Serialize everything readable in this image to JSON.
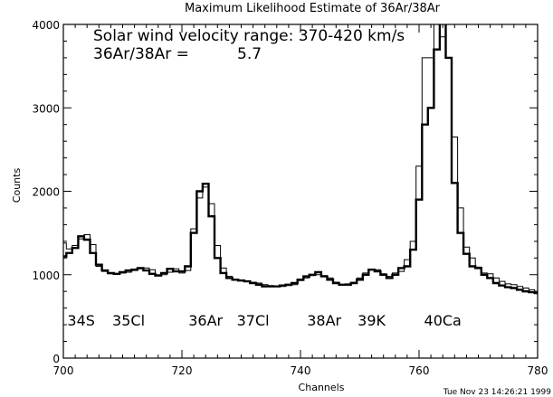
{
  "chart_data": {
    "type": "line",
    "title": "Maximum Likelihood Estimate of 36Ar/38Ar",
    "xlabel": "Channels",
    "ylabel": "Counts",
    "xlim": [
      700,
      780
    ],
    "ylim": [
      0,
      4000
    ],
    "x_ticks": [
      700,
      720,
      740,
      760,
      780
    ],
    "y_ticks": [
      0,
      1000,
      2000,
      3000,
      4000
    ],
    "grid": false,
    "annotations": {
      "velocity_label": "Solar wind velocity range: 370-420 km/s",
      "ratio_label": "36Ar/38Ar =",
      "ratio_value": "5.7",
      "timestamp": "Tue Nov 23 14:26:21 1999"
    },
    "peaks": [
      {
        "label": "34S",
        "x": 703
      },
      {
        "label": "35Cl",
        "x": 711
      },
      {
        "label": "36Ar",
        "x": 724
      },
      {
        "label": "37Cl",
        "x": 732
      },
      {
        "label": "38Ar",
        "x": 744
      },
      {
        "label": "39K",
        "x": 752
      },
      {
        "label": "40Ca",
        "x": 764
      }
    ],
    "series": [
      {
        "style": "thick",
        "x": [
          700,
          701,
          702,
          703,
          704,
          705,
          706,
          707,
          708,
          709,
          710,
          711,
          712,
          713,
          714,
          715,
          716,
          717,
          718,
          719,
          720,
          721,
          722,
          723,
          724,
          725,
          726,
          727,
          728,
          729,
          730,
          731,
          732,
          733,
          734,
          735,
          736,
          737,
          738,
          739,
          740,
          741,
          742,
          743,
          744,
          745,
          746,
          747,
          748,
          749,
          750,
          751,
          752,
          753,
          754,
          755,
          756,
          757,
          758,
          759,
          760,
          761,
          762,
          763,
          764,
          765,
          766,
          767,
          768,
          769,
          770,
          771,
          772,
          773,
          774,
          775,
          776,
          777,
          778,
          779,
          780
        ],
        "values": [
          1220,
          1260,
          1320,
          1460,
          1420,
          1260,
          1120,
          1050,
          1020,
          1010,
          1030,
          1050,
          1060,
          1080,
          1050,
          1010,
          990,
          1020,
          1070,
          1040,
          1040,
          1100,
          1500,
          2000,
          2090,
          1700,
          1200,
          1020,
          960,
          940,
          930,
          920,
          900,
          880,
          860,
          860,
          860,
          870,
          880,
          900,
          940,
          980,
          1000,
          1030,
          980,
          940,
          900,
          880,
          880,
          900,
          940,
          1000,
          1060,
          1040,
          1000,
          960,
          1000,
          1080,
          1100,
          1300,
          1900,
          2800,
          3000,
          3700,
          4100,
          3600,
          2100,
          1500,
          1250,
          1100,
          1080,
          1000,
          960,
          900,
          870,
          850,
          840,
          820,
          800,
          790,
          780
        ]
      },
      {
        "style": "thin",
        "x": [
          700,
          701,
          702,
          703,
          704,
          705,
          706,
          707,
          708,
          709,
          710,
          711,
          712,
          713,
          714,
          715,
          716,
          717,
          718,
          719,
          720,
          721,
          722,
          723,
          724,
          725,
          726,
          727,
          728,
          729,
          730,
          731,
          732,
          733,
          734,
          735,
          736,
          737,
          738,
          739,
          740,
          741,
          742,
          743,
          744,
          745,
          746,
          747,
          748,
          749,
          750,
          751,
          752,
          753,
          754,
          755,
          756,
          757,
          758,
          759,
          760,
          761,
          762,
          763,
          764,
          765,
          766,
          767,
          768,
          769,
          770,
          771,
          772,
          773,
          774,
          775,
          776,
          777,
          778,
          779,
          780
        ],
        "values": [
          1380,
          1310,
          1350,
          1430,
          1480,
          1360,
          1100,
          1040,
          1010,
          1010,
          1020,
          1030,
          1050,
          1070,
          1080,
          1060,
          1000,
          1000,
          1030,
          1070,
          1020,
          1050,
          1550,
          1920,
          2050,
          1850,
          1350,
          1080,
          980,
          940,
          930,
          920,
          910,
          900,
          880,
          870,
          860,
          860,
          870,
          880,
          930,
          960,
          990,
          1000,
          990,
          960,
          910,
          880,
          890,
          910,
          960,
          1020,
          1060,
          1060,
          1010,
          980,
          1020,
          1040,
          1180,
          1400,
          2300,
          3600,
          3600,
          4050,
          3850,
          3600,
          2650,
          1800,
          1330,
          1200,
          1090,
          1020,
          1010,
          960,
          920,
          890,
          880,
          860,
          840,
          820,
          800
        ]
      }
    ]
  }
}
